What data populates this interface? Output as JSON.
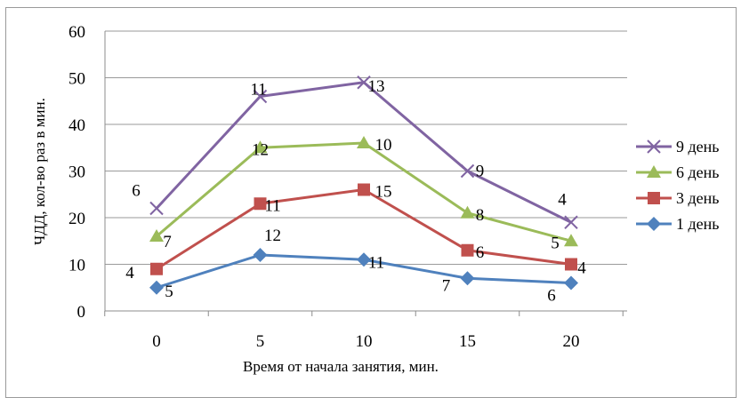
{
  "chart_data": {
    "type": "line",
    "categories": [
      "0",
      "5",
      "10",
      "15",
      "20"
    ],
    "xlabel": "Время от начала занятия, мин.",
    "ylabel": "ЧДД, кол-во раз в мин.",
    "ylim": [
      0,
      60
    ],
    "yticks": [
      "0",
      "10",
      "20",
      "30",
      "40",
      "50",
      "60"
    ],
    "grid": "horizontal",
    "legend_position": "right",
    "series": [
      {
        "name": "9 день",
        "color": "#8064a2",
        "marker": "x",
        "values": [
          22,
          46,
          49,
          30,
          19
        ],
        "labels": [
          "6",
          "11",
          "13",
          "9",
          "4"
        ]
      },
      {
        "name": "6 день",
        "color": "#9bbb59",
        "marker": "triangle",
        "values": [
          16,
          35,
          36,
          21,
          15
        ],
        "labels": [
          "7",
          "12",
          "10",
          "8",
          "5"
        ]
      },
      {
        "name": "3 день",
        "color": "#c0504d",
        "marker": "square",
        "values": [
          9,
          23,
          26,
          13,
          10
        ],
        "labels": [
          "4",
          "11",
          "15",
          "6",
          "4"
        ]
      },
      {
        "name": "1 день",
        "color": "#4f81bd",
        "marker": "diamond",
        "values": [
          5,
          12,
          11,
          7,
          6
        ],
        "labels": [
          "5",
          "12",
          "11",
          "7",
          "6"
        ]
      }
    ]
  }
}
